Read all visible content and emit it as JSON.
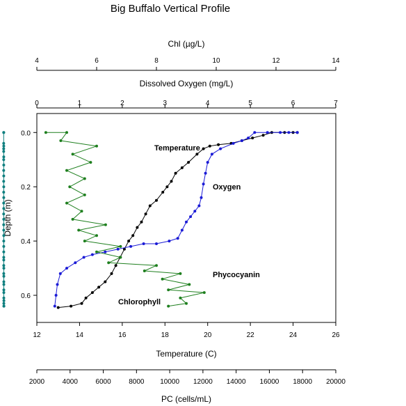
{
  "chart_data": {
    "type": "scatter",
    "title": "Big Buffalo Vertical Profile",
    "ylabel": "Depth (m)",
    "ylim": [
      0.7,
      -0.07
    ],
    "y_ticks": [
      "0.0",
      "0.2",
      "0.4",
      "0.6"
    ],
    "axes": {
      "chl": {
        "label": "Chl (µg/L)",
        "range": [
          4,
          14
        ],
        "ticks": [
          "4",
          "6",
          "8",
          "10",
          "12",
          "14"
        ]
      },
      "do": {
        "label": "Dissolved Oxygen (mg/L)",
        "range": [
          0,
          7
        ],
        "ticks": [
          "0",
          "1",
          "2",
          "3",
          "4",
          "5",
          "6",
          "7"
        ]
      },
      "temp": {
        "label": "Temperature (C)",
        "range": [
          12,
          26
        ],
        "ticks": [
          "12",
          "14",
          "16",
          "18",
          "20",
          "22",
          "24",
          "26"
        ]
      },
      "pc": {
        "label": "PC (cells/mL)",
        "range": [
          2000,
          20000
        ],
        "ticks": [
          "2000",
          "4000",
          "6000",
          "8000",
          "10000",
          "12000",
          "14000",
          "16000",
          "18000",
          "20000"
        ]
      }
    },
    "annotations": {
      "temperature": "Temperature",
      "oxygen": "Oxygen",
      "phycocyanin": "Phycocyanin",
      "chlorophyll": "Chlorophyll"
    },
    "series": [
      {
        "name": "Temperature",
        "axis": "temp",
        "color": "#000000",
        "points": [
          [
            24.2,
            0.0
          ],
          [
            24.0,
            0.0
          ],
          [
            23.6,
            0.0
          ],
          [
            23.0,
            0.0
          ],
          [
            22.6,
            0.01
          ],
          [
            22.1,
            0.02
          ],
          [
            21.6,
            0.03
          ],
          [
            21.1,
            0.04
          ],
          [
            20.5,
            0.045
          ],
          [
            20.1,
            0.05
          ],
          [
            19.8,
            0.06
          ],
          [
            19.5,
            0.08
          ],
          [
            19.1,
            0.11
          ],
          [
            18.8,
            0.13
          ],
          [
            18.5,
            0.15
          ],
          [
            18.3,
            0.18
          ],
          [
            18.1,
            0.2
          ],
          [
            17.9,
            0.22
          ],
          [
            17.6,
            0.25
          ],
          [
            17.3,
            0.27
          ],
          [
            17.1,
            0.3
          ],
          [
            16.9,
            0.33
          ],
          [
            16.7,
            0.35
          ],
          [
            16.5,
            0.38
          ],
          [
            16.3,
            0.4
          ],
          [
            16.1,
            0.43
          ],
          [
            15.9,
            0.46
          ],
          [
            15.7,
            0.49
          ],
          [
            15.5,
            0.52
          ],
          [
            15.2,
            0.55
          ],
          [
            14.9,
            0.57
          ],
          [
            14.6,
            0.59
          ],
          [
            14.3,
            0.61
          ],
          [
            14.1,
            0.63
          ],
          [
            13.6,
            0.64
          ],
          [
            13.0,
            0.645
          ]
        ]
      },
      {
        "name": "Oxygen",
        "axis": "do",
        "color": "#1a1ad6",
        "points": [
          [
            6.1,
            0.0
          ],
          [
            5.9,
            0.0
          ],
          [
            5.7,
            0.0
          ],
          [
            5.4,
            0.0
          ],
          [
            5.1,
            0.0
          ],
          [
            4.95,
            0.02
          ],
          [
            4.8,
            0.03
          ],
          [
            4.6,
            0.04
          ],
          [
            4.3,
            0.06
          ],
          [
            4.1,
            0.08
          ],
          [
            4.0,
            0.11
          ],
          [
            3.95,
            0.15
          ],
          [
            3.9,
            0.19
          ],
          [
            3.85,
            0.24
          ],
          [
            3.8,
            0.27
          ],
          [
            3.7,
            0.29
          ],
          [
            3.6,
            0.31
          ],
          [
            3.5,
            0.33
          ],
          [
            3.4,
            0.36
          ],
          [
            3.3,
            0.39
          ],
          [
            3.1,
            0.4
          ],
          [
            2.8,
            0.41
          ],
          [
            2.5,
            0.41
          ],
          [
            2.2,
            0.42
          ],
          [
            1.9,
            0.43
          ],
          [
            1.6,
            0.44
          ],
          [
            1.3,
            0.45
          ],
          [
            1.1,
            0.46
          ],
          [
            0.9,
            0.48
          ],
          [
            0.7,
            0.5
          ],
          [
            0.55,
            0.52
          ],
          [
            0.48,
            0.56
          ],
          [
            0.45,
            0.6
          ],
          [
            0.42,
            0.64
          ]
        ]
      },
      {
        "name": "Phycocyanin",
        "axis": "pc",
        "color": "#0f7f7f",
        "points": [
          [
            7.1,
            0.0
          ],
          [
            4.6,
            0.0
          ],
          [
            4.5,
            0.04
          ],
          [
            5.0,
            0.06
          ],
          [
            6.1,
            0.05
          ],
          [
            5.3,
            0.07
          ],
          [
            6.0,
            0.09
          ],
          [
            4.9,
            0.1
          ],
          [
            5.8,
            0.12
          ],
          [
            4.7,
            0.14
          ],
          [
            6.2,
            0.16
          ],
          [
            5.0,
            0.18
          ],
          [
            6.4,
            0.2
          ],
          [
            4.9,
            0.22
          ],
          [
            6.6,
            0.24
          ],
          [
            5.2,
            0.26
          ],
          [
            6.0,
            0.28
          ],
          [
            5.0,
            0.3
          ],
          [
            6.6,
            0.32
          ],
          [
            5.3,
            0.34
          ],
          [
            6.2,
            0.36
          ],
          [
            5.5,
            0.38
          ],
          [
            6.4,
            0.4
          ],
          [
            5.8,
            0.42
          ],
          [
            7.0,
            0.44
          ],
          [
            6.6,
            0.46
          ],
          [
            8.4,
            0.47
          ],
          [
            7.8,
            0.49
          ],
          [
            9.7,
            0.5
          ],
          [
            9.0,
            0.52
          ],
          [
            11.3,
            0.53
          ],
          [
            10.3,
            0.55
          ],
          [
            12.8,
            0.56
          ],
          [
            11.8,
            0.58
          ],
          [
            13.6,
            0.59
          ],
          [
            12.4,
            0.61
          ],
          [
            15.2,
            0.62
          ],
          [
            13.1,
            0.63
          ],
          [
            17.6,
            0.64
          ],
          [
            14.8,
            0.64
          ]
        ]
      },
      {
        "name": "Chlorophyll",
        "axis": "chl",
        "color": "#1e7f1e",
        "points": [
          [
            4.3,
            0.0
          ],
          [
            5.0,
            0.0
          ],
          [
            4.8,
            0.03
          ],
          [
            6.0,
            0.05
          ],
          [
            5.2,
            0.08
          ],
          [
            5.8,
            0.11
          ],
          [
            5.0,
            0.14
          ],
          [
            5.6,
            0.17
          ],
          [
            5.1,
            0.2
          ],
          [
            5.6,
            0.23
          ],
          [
            5.0,
            0.26
          ],
          [
            5.5,
            0.29
          ],
          [
            5.2,
            0.32
          ],
          [
            6.3,
            0.34
          ],
          [
            5.4,
            0.36
          ],
          [
            6.0,
            0.38
          ],
          [
            5.6,
            0.4
          ],
          [
            6.8,
            0.42
          ],
          [
            6.0,
            0.44
          ],
          [
            6.8,
            0.46
          ],
          [
            6.4,
            0.48
          ],
          [
            8.0,
            0.49
          ],
          [
            7.6,
            0.51
          ],
          [
            8.8,
            0.52
          ],
          [
            8.2,
            0.54
          ],
          [
            9.1,
            0.56
          ],
          [
            8.4,
            0.58
          ],
          [
            9.6,
            0.59
          ],
          [
            8.8,
            0.61
          ],
          [
            9.0,
            0.63
          ],
          [
            8.4,
            0.64
          ]
        ]
      }
    ]
  }
}
